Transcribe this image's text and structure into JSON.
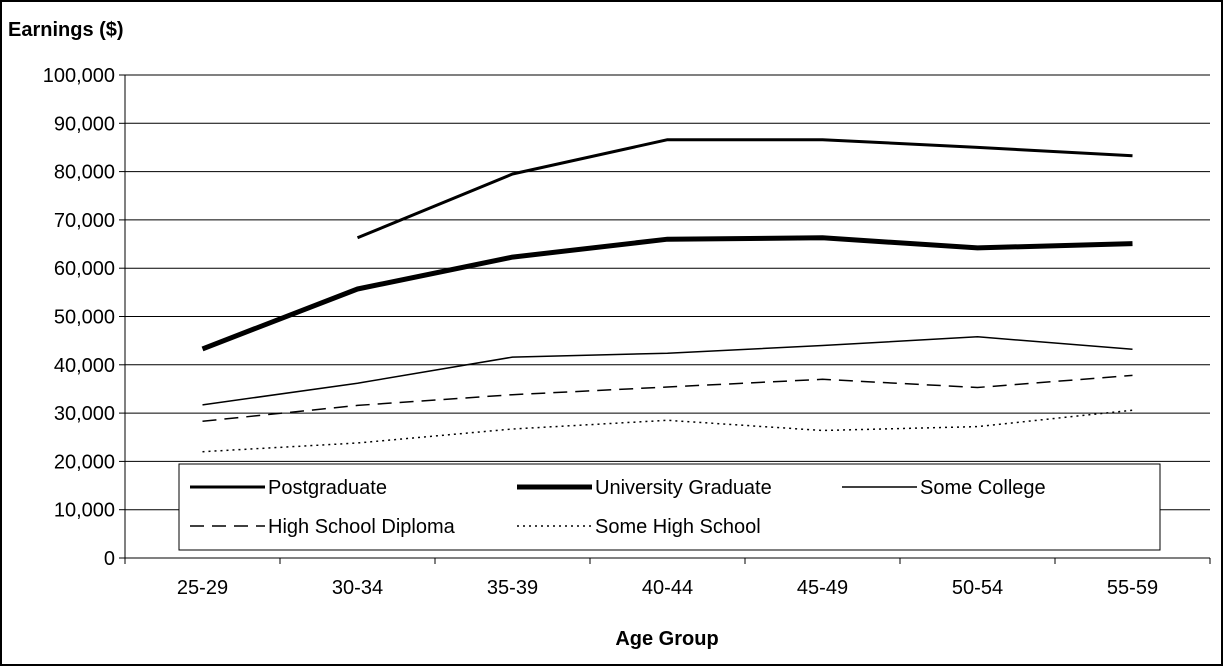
{
  "chart_data": {
    "type": "line",
    "title": "",
    "ylabel": "Earnings ($)",
    "xlabel": "Age Group",
    "categories": [
      "25-29",
      "30-34",
      "35-39",
      "40-44",
      "45-49",
      "50-54",
      "55-59"
    ],
    "ylim": [
      0,
      100000
    ],
    "yticks": [
      0,
      10000,
      20000,
      30000,
      40000,
      50000,
      60000,
      70000,
      80000,
      90000,
      100000
    ],
    "ytick_labels": [
      "0",
      "10,000",
      "20,000",
      "30,000",
      "40,000",
      "50,000",
      "60,000",
      "70,000",
      "80,000",
      "90,000",
      "100,000"
    ],
    "grid": true,
    "legend_position": "bottom-inside",
    "series": [
      {
        "name": "Postgraduate",
        "values": [
          null,
          66300,
          79500,
          86600,
          86600,
          85000,
          83300
        ],
        "style": "solid-thick",
        "color": "#000000"
      },
      {
        "name": "University Graduate",
        "values": [
          43300,
          55700,
          62300,
          66000,
          66300,
          64200,
          65100
        ],
        "style": "solid-extra-thick",
        "color": "#000000"
      },
      {
        "name": "Some College",
        "values": [
          31700,
          36200,
          41600,
          42400,
          44000,
          45800,
          43200
        ],
        "style": "solid-thin",
        "color": "#000000"
      },
      {
        "name": "High School Diploma",
        "values": [
          28300,
          31600,
          33800,
          35400,
          37000,
          35300,
          37800
        ],
        "style": "dashed",
        "color": "#000000"
      },
      {
        "name": "Some High School",
        "values": [
          22000,
          23800,
          26700,
          28500,
          26400,
          27200,
          30600
        ],
        "style": "dotted",
        "color": "#000000"
      }
    ]
  }
}
